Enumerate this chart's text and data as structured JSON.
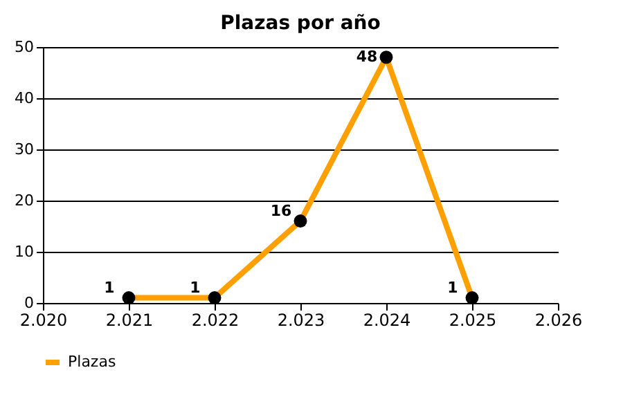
{
  "chart_data": {
    "type": "line",
    "title": "Plazas por año",
    "x": [
      2021,
      2022,
      2023,
      2024,
      2025
    ],
    "series": [
      {
        "name": "Plazas",
        "color": "#ffa000",
        "values": [
          1,
          1,
          16,
          48,
          1
        ]
      }
    ],
    "xlim": [
      2020,
      2026
    ],
    "xticks": [
      {
        "value": 2020,
        "label": "2.020"
      },
      {
        "value": 2021,
        "label": "2.021"
      },
      {
        "value": 2022,
        "label": "2.022"
      },
      {
        "value": 2023,
        "label": "2.023"
      },
      {
        "value": 2024,
        "label": "2.024"
      },
      {
        "value": 2025,
        "label": "2.025"
      },
      {
        "value": 2026,
        "label": "2.026"
      }
    ],
    "ylim": [
      0,
      50
    ],
    "yticks": [
      0,
      10,
      20,
      30,
      40,
      50
    ],
    "grid": "y",
    "legend": "bottom",
    "marker": "circle",
    "line_style": "solid",
    "data_labels": true
  }
}
